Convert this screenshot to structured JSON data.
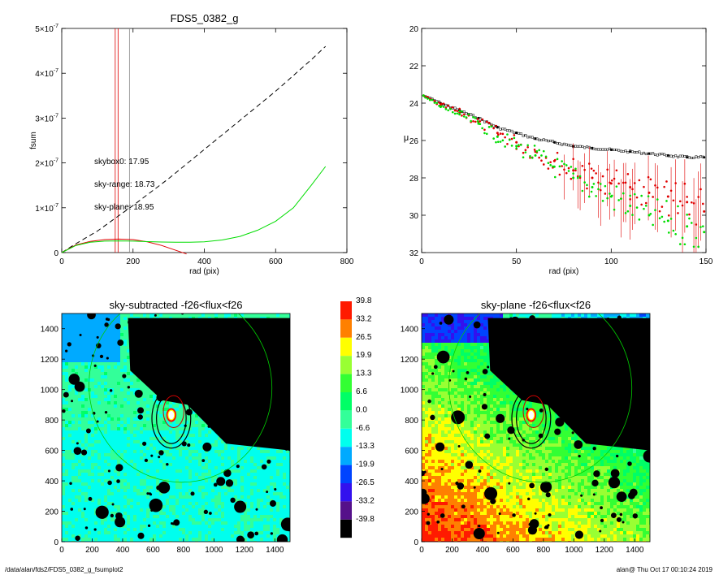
{
  "footer": {
    "path": "/data/alan/fds2/FDS5_0382_g_fsumplot2",
    "stamp": "alan@  Thu Oct 17 00:10:24 2019"
  },
  "chart_data": [
    {
      "id": "fsum",
      "type": "line",
      "title": "FDS5_0382_g",
      "xlabel": "rad (pix)",
      "ylabel": "fsum",
      "xlim": [
        0,
        800
      ],
      "ylim": [
        0,
        5e-07
      ],
      "xticks": [
        "0",
        "200",
        "400",
        "600",
        "800"
      ],
      "yticks": [
        {
          "v": 0,
          "mant": "0",
          "exp": ""
        },
        {
          "v": 1e-07,
          "mant": "1×10",
          "exp": "-7"
        },
        {
          "v": 2e-07,
          "mant": "2×10",
          "exp": "-7"
        },
        {
          "v": 3e-07,
          "mant": "3×10",
          "exp": "-7"
        },
        {
          "v": 4e-07,
          "mant": "4×10",
          "exp": "-7"
        },
        {
          "v": 5e-07,
          "mant": "5×10",
          "exp": "-7"
        }
      ],
      "annotations": [
        {
          "text": "skybox0: 17.95",
          "color": "#000000"
        },
        {
          "text": "sky-range: 18.73",
          "color": "#e00000"
        },
        {
          "text": "sky-plane: 18.95",
          "color": "#00dd00"
        }
      ],
      "vlines": [
        {
          "x": 150,
          "color": "#e00000"
        },
        {
          "x": 158,
          "color": "#e00000"
        },
        {
          "x": 190,
          "color": "#888888"
        }
      ],
      "series": [
        {
          "color": "#000000",
          "dash": true,
          "x": [
            0,
            40,
            100,
            200,
            300,
            400,
            500,
            600,
            700,
            740
          ],
          "y": [
            0,
            2e-08,
            4.8e-08,
            1.05e-07,
            1.65e-07,
            2.3e-07,
            2.95e-07,
            3.6e-07,
            4.3e-07,
            4.6e-07
          ]
        },
        {
          "color": "#e00000",
          "dash": false,
          "x": [
            0,
            40,
            80,
            120,
            160,
            200,
            240,
            280,
            320,
            350
          ],
          "y": [
            0,
            1.7e-08,
            2.5e-08,
            2.9e-08,
            3e-08,
            2.9e-08,
            2.4e-08,
            1.6e-08,
            5e-09,
            -3e-09
          ]
        },
        {
          "color": "#00dd00",
          "dash": false,
          "x": [
            0,
            40,
            80,
            120,
            160,
            200,
            240,
            280,
            320,
            360,
            400,
            450,
            500,
            550,
            600,
            650,
            700,
            740
          ],
          "y": [
            0,
            1.6e-08,
            2.3e-08,
            2.55e-08,
            2.6e-08,
            2.55e-08,
            2.45e-08,
            2.35e-08,
            2.3e-08,
            2.3e-08,
            2.4e-08,
            2.8e-08,
            3.6e-08,
            5e-08,
            7e-08,
            1e-07,
            1.5e-07,
            1.92e-07
          ]
        }
      ]
    },
    {
      "id": "profile",
      "type": "scatter",
      "title": "",
      "xlabel": "rad (pix)",
      "ylabel": "μ",
      "xlim": [
        0,
        150
      ],
      "ylim": [
        32,
        20
      ],
      "xticks": [
        "0",
        "50",
        "100",
        "150"
      ],
      "yticks": [
        "20",
        "22",
        "24",
        "26",
        "28",
        "30",
        "32"
      ],
      "series": [
        {
          "color": "#000000",
          "x": [
            1,
            10,
            20,
            30,
            40,
            50,
            60,
            70,
            80,
            90,
            100,
            110,
            120,
            130,
            140,
            149
          ],
          "y": [
            23.6,
            24.0,
            24.4,
            24.8,
            25.3,
            25.6,
            25.9,
            26.1,
            26.3,
            26.4,
            26.5,
            26.6,
            26.7,
            26.8,
            26.9,
            26.9
          ]
        },
        {
          "color": "#e00000",
          "x": [
            1,
            10,
            20,
            30,
            40,
            50,
            60,
            70,
            80,
            90,
            100,
            110,
            120,
            130,
            140,
            149
          ],
          "y": [
            23.6,
            24.1,
            24.5,
            25.0,
            25.6,
            26.1,
            26.6,
            27.1,
            27.6,
            28.0,
            28.3,
            28.5,
            28.8,
            29.0,
            29.3,
            29.8
          ]
        },
        {
          "color": "#00dd00",
          "x": [
            1,
            10,
            20,
            30,
            40,
            50,
            60,
            70,
            80,
            90,
            100,
            110,
            120,
            130,
            140,
            149
          ],
          "y": [
            23.6,
            24.2,
            24.6,
            25.1,
            25.8,
            26.3,
            26.8,
            27.4,
            28.0,
            28.5,
            29.0,
            29.5,
            30.0,
            30.3,
            30.6,
            30.9
          ]
        }
      ]
    },
    {
      "id": "img1",
      "type": "heatmap",
      "title": "sky-subtracted -f26<flux<f26",
      "xticks": [
        "0",
        "200",
        "400",
        "600",
        "800",
        "1000",
        "1200",
        "1400"
      ],
      "yticks": [
        "0",
        "200",
        "400",
        "600",
        "800",
        "1000",
        "1200",
        "1400"
      ],
      "gradient": "flat"
    },
    {
      "id": "img2",
      "type": "heatmap",
      "title": "sky-plane -f26<flux<f26",
      "xticks": [
        "0",
        "200",
        "400",
        "600",
        "800",
        "1000",
        "1200",
        "1400"
      ],
      "yticks": [
        "0",
        "200",
        "400",
        "600",
        "800",
        "1000",
        "1200",
        "1400"
      ],
      "gradient": "plane"
    },
    {
      "id": "colorbar",
      "type": "colorbar",
      "levels": [
        {
          "label": "39.8",
          "color": "#ff1a00"
        },
        {
          "label": "33.2",
          "color": "#ff8000"
        },
        {
          "label": "26.5",
          "color": "#ffff00"
        },
        {
          "label": "19.9",
          "color": "#99ff33"
        },
        {
          "label": "13.3",
          "color": "#33ff33"
        },
        {
          "label": "6.6",
          "color": "#00ff66"
        },
        {
          "label": "0.0",
          "color": "#33ff99"
        },
        {
          "label": "-6.6",
          "color": "#00ffee"
        },
        {
          "label": "-13.3",
          "color": "#00aaff"
        },
        {
          "label": "-19.9",
          "color": "#0044ff"
        },
        {
          "label": "-26.5",
          "color": "#3311ee"
        },
        {
          "label": "-33.2",
          "color": "#55118a"
        },
        {
          "label": "-39.8",
          "color": "#000000"
        }
      ]
    }
  ]
}
